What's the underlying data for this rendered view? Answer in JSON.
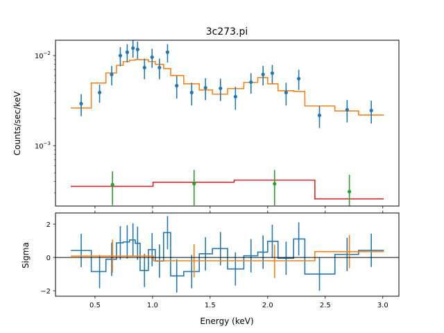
{
  "chart_data": [
    {
      "type": "line",
      "title": "3c273.pi",
      "xlabel": "",
      "ylabel": "Counts/sec/keV",
      "yscale": "log",
      "xlim": [
        0.157,
        3.14
      ],
      "ylim": [
        0.000214,
        0.0148
      ],
      "ytick_labels": [
        {
          "value": 0.01,
          "base": "10",
          "exp": "−2"
        },
        {
          "value": 0.001,
          "base": "10",
          "exp": "−3"
        }
      ],
      "grid": false,
      "colors": {
        "data": "#1f77b4",
        "model": "#ff7f0e",
        "bkg_data": "#2ca02c",
        "bkg_model": "#d62728"
      },
      "data_points": {
        "x": [
          0.38,
          0.54,
          0.645,
          0.72,
          0.78,
          0.83,
          0.87,
          0.93,
          0.996,
          1.06,
          1.13,
          1.21,
          1.34,
          1.46,
          1.59,
          1.72,
          1.855,
          1.96,
          2.04,
          2.16,
          2.27,
          2.45,
          2.69,
          2.9
        ],
        "y": [
          0.00293,
          0.00389,
          0.00617,
          0.01,
          0.0109,
          0.0121,
          0.0117,
          0.00736,
          0.0096,
          0.00736,
          0.0109,
          0.00464,
          0.00389,
          0.0044,
          0.00433,
          0.0035,
          0.00507,
          0.00617,
          0.00638,
          0.00389,
          0.00555,
          0.00217,
          0.00251,
          0.00246
        ],
        "yerr": [
          0.0008,
          0.0009,
          0.0015,
          0.0024,
          0.0025,
          0.0026,
          0.0026,
          0.0019,
          0.0023,
          0.0019,
          0.0025,
          0.0013,
          0.0011,
          0.0012,
          0.0012,
          0.001,
          0.0013,
          0.0015,
          0.0015,
          0.0011,
          0.0014,
          0.0006,
          0.0007,
          0.0007
        ]
      },
      "model_step": {
        "edges": [
          0.29,
          0.468,
          0.595,
          0.687,
          0.745,
          0.8,
          0.85,
          0.892,
          0.964,
          1.024,
          1.096,
          1.157,
          1.271,
          1.406,
          1.52,
          1.652,
          1.793,
          1.914,
          2.0,
          2.09,
          2.225,
          2.323,
          2.584,
          2.79,
          3.01
        ],
        "values": [
          0.00262,
          0.00496,
          0.00642,
          0.0078,
          0.00858,
          0.00889,
          0.00904,
          0.009,
          0.00858,
          0.008,
          0.00718,
          0.00601,
          0.00486,
          0.00415,
          0.00373,
          0.0043,
          0.00503,
          0.0057,
          0.00486,
          0.00407,
          0.004,
          0.00276,
          0.00243,
          0.00219
        ]
      },
      "bkg_points": {
        "x": [
          0.652,
          1.361,
          2.06,
          2.71
        ],
        "y": [
          0.000369,
          0.000378,
          0.000378,
          0.000309
        ],
        "yerr": [
          0.00015,
          0.00016,
          0.00016,
          0.000166
        ]
      },
      "bkg_model_step": {
        "edges": [
          0.29,
          1.004,
          1.709,
          2.41,
          3.008
        ],
        "values": [
          0.000354,
          0.000393,
          0.000415,
          0.000257
        ]
      }
    },
    {
      "type": "line",
      "xlabel": "Energy (keV)",
      "ylabel": "Sigma",
      "xlim": [
        0.157,
        3.14
      ],
      "ylim": [
        -2.33,
        2.67
      ],
      "yticks": [
        -2,
        0,
        2
      ],
      "ytick_labels": [
        "−2",
        "0",
        "2"
      ],
      "xticks": [
        0.5,
        1.0,
        1.5,
        2.0,
        2.5,
        3.0
      ],
      "xtick_labels": [
        "0.5",
        "1.0",
        "1.5",
        "2.0",
        "2.5",
        "3.0"
      ],
      "reference_line": 0,
      "resid_step": {
        "edges": [
          0.29,
          0.468,
          0.595,
          0.687,
          0.745,
          0.8,
          0.85,
          0.892,
          0.964,
          1.024,
          1.096,
          1.157,
          1.271,
          1.406,
          1.52,
          1.652,
          1.793,
          1.914,
          2.0,
          2.09,
          2.225,
          2.323,
          2.584,
          2.79,
          3.01
        ],
        "values": [
          0.42,
          -0.85,
          -0.11,
          0.875,
          0.93,
          1.05,
          0.85,
          -0.78,
          0.47,
          -0.22,
          1.49,
          -1.11,
          -0.85,
          0.22,
          0.53,
          -0.69,
          0.1,
          0.32,
          0.97,
          -0.05,
          1.11,
          -1.0,
          0.18,
          0.43
        ]
      },
      "resid_points": {
        "x": [
          0.38,
          0.54,
          0.645,
          0.72,
          0.78,
          0.83,
          0.87,
          0.93,
          0.996,
          1.06,
          1.13,
          1.21,
          1.34,
          1.46,
          1.59,
          1.72,
          1.855,
          1.96,
          2.04,
          2.16,
          2.27,
          2.45,
          2.69,
          2.9
        ],
        "y": [
          0.42,
          -0.85,
          -0.11,
          0.875,
          0.93,
          1.05,
          0.85,
          -0.78,
          0.47,
          -0.22,
          1.49,
          -1.11,
          -0.85,
          0.22,
          0.53,
          -0.69,
          0.1,
          0.32,
          0.97,
          -0.05,
          1.11,
          -1.0,
          0.18,
          0.43
        ],
        "yerr": 1
      },
      "bkg_resid_step": {
        "edges": [
          0.29,
          1.008,
          2.41,
          3.01
        ],
        "values": [
          0.08,
          -0.2,
          0.35
        ]
      },
      "bkg_resid_points": {
        "x": [
          0.652,
          1.361,
          2.06,
          2.71
        ],
        "y": [
          0.08,
          -0.2,
          -0.24,
          0.35
        ],
        "yerr": 1
      }
    }
  ]
}
